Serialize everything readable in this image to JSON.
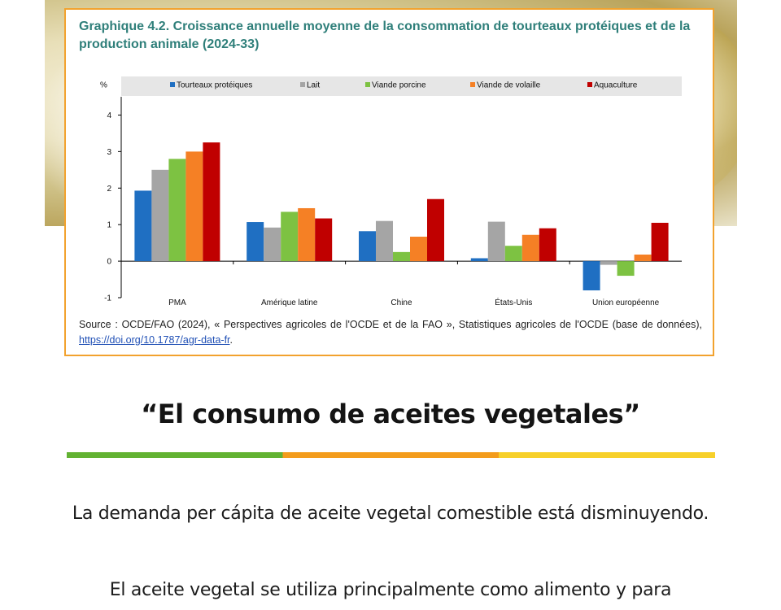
{
  "chart_card": {
    "title": "Graphique 4.2. Croissance annuelle moyenne de la consommation de tourteaux protéiques et de la production animale (2024-33)",
    "source_prefix": "Source : OCDE/FAO (2024), « Perspectives agricoles de l'OCDE et de la FAO », Statistiques agricoles de l'OCDE (base de données), ",
    "source_link": "https://doi.org/10.1787/agr-data-fr",
    "source_suffix": "."
  },
  "chart_data": {
    "type": "bar",
    "ylabel": "%",
    "ylim": [
      -1,
      4.5
    ],
    "yticks": [
      -1,
      0,
      1,
      2,
      3,
      4
    ],
    "legend_position": "top",
    "categories": [
      "PMA",
      "Amérique latine",
      "Chine",
      "États-Unis",
      "Union européenne"
    ],
    "series": [
      {
        "name": "Tourteaux protéiques",
        "color": "#1f6fc2",
        "values": [
          1.93,
          1.07,
          0.82,
          0.08,
          -0.8
        ]
      },
      {
        "name": "Lait",
        "color": "#a5a5a5",
        "values": [
          2.5,
          0.92,
          1.1,
          1.08,
          -0.1
        ]
      },
      {
        "name": "Viande porcine",
        "color": "#7dc242",
        "values": [
          2.8,
          1.35,
          0.25,
          0.42,
          -0.4
        ]
      },
      {
        "name": "Viande de volaille",
        "color": "#f58025",
        "values": [
          3.0,
          1.45,
          0.67,
          0.72,
          0.18
        ]
      },
      {
        "name": "Aquaculture",
        "color": "#c00000",
        "values": [
          3.25,
          1.17,
          1.7,
          0.9,
          1.05
        ]
      }
    ]
  },
  "heading": "“El consumo de aceites vegetales”",
  "paragraphs": [
    "La demanda per cápita de aceite vegetal comestible está disminuyendo.",
    "El aceite vegetal se utiliza principalmente como alimento y para"
  ],
  "colors": {
    "card_border": "#f2a22e",
    "title_color": "#2f7f7a",
    "divider": [
      "#62b232",
      "#f39c1c",
      "#f7d02a"
    ]
  }
}
